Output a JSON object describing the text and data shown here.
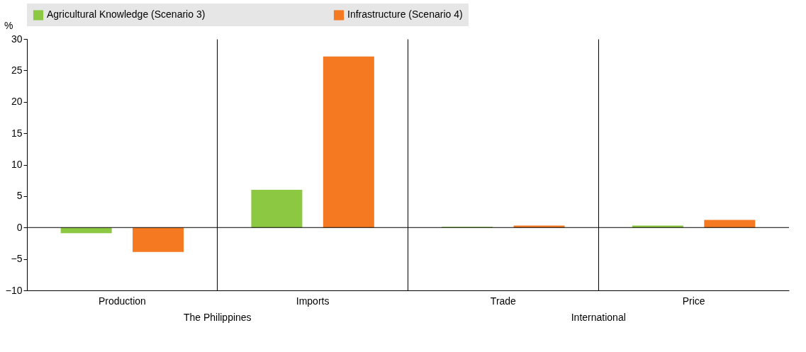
{
  "chart_data": {
    "type": "bar",
    "ylabel": "%",
    "categories": [
      "Production",
      "Imports",
      "Trade",
      "Price"
    ],
    "series": [
      {
        "name": "Agricultural Knowledge (Scenario 3)",
        "color": "#8cc841",
        "values": [
          -0.9,
          6.0,
          0.1,
          0.3
        ]
      },
      {
        "name": "Infrastructure (Scenario 4)",
        "color": "#f47920",
        "values": [
          -3.9,
          27.2,
          0.3,
          1.2
        ]
      }
    ],
    "ylim": [
      -10,
      30
    ],
    "yticks": [
      -10,
      -5,
      0,
      5,
      10,
      15,
      20,
      25,
      30
    ],
    "grid": "x",
    "ref_lines": [
      {
        "axis": "y",
        "value": 0
      }
    ],
    "legend": "top",
    "annotations": [
      "The Philippines",
      "International"
    ]
  }
}
